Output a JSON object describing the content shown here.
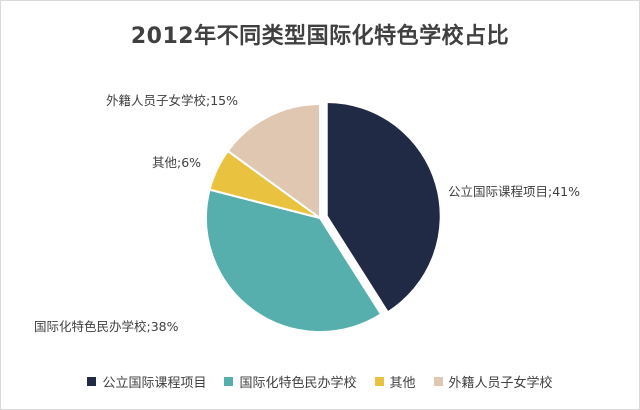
{
  "chart_data": {
    "type": "pie",
    "title": "2012年不同类型国际化特色学校占比",
    "categories": [
      "公立国际课程项目",
      "国际化特色民办学校",
      "其他",
      "外籍人员子女学校"
    ],
    "values": [
      41,
      38,
      6,
      15
    ],
    "labels": [
      "公立国际课程项目;41%",
      "国际化特色民办学校;38%",
      "其他;6%",
      "外籍人员子女学校;15%"
    ],
    "colors": [
      "#212a44",
      "#56afac",
      "#e9c33f",
      "#dfc7b1"
    ],
    "exploded": [
      "公立国际课程项目"
    ],
    "legend": "bottom"
  }
}
